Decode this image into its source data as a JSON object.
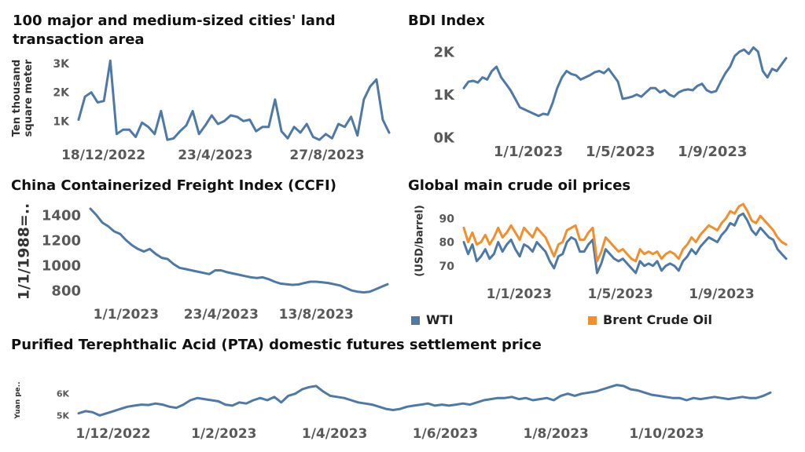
{
  "chart_data": [
    {
      "id": "land",
      "type": "line",
      "title": "100 major and medium-sized cities' land transaction area",
      "ylabel": "Ten thousand square meter",
      "xlabel": "",
      "x_tick_labels": [
        "18/12/2022",
        "23/4/2023",
        "27/8/2023"
      ],
      "y_tick_labels": [
        "1K",
        "2K",
        "3K"
      ],
      "y_ticks": [
        1000,
        2000,
        3000
      ],
      "ylim": [
        300,
        3300
      ],
      "xlim": [
        0,
        50
      ],
      "x_tick_positions": [
        4,
        22,
        40
      ],
      "grid": false,
      "series": [
        {
          "color": "#4e79a7",
          "values": [
            1050,
            1850,
            2000,
            1650,
            1700,
            3100,
            550,
            700,
            700,
            450,
            950,
            800,
            550,
            1350,
            350,
            400,
            650,
            850,
            1350,
            550,
            850,
            1200,
            900,
            1000,
            1200,
            1150,
            1000,
            1050,
            650,
            800,
            800,
            1750,
            650,
            400,
            800,
            600,
            900,
            450,
            350,
            550,
            400,
            900,
            800,
            1150,
            500,
            1750,
            2200,
            2450,
            1050,
            600
          ]
        }
      ]
    },
    {
      "id": "bdi",
      "type": "line",
      "title": "BDI Index",
      "xlabel": "",
      "ylabel": "",
      "x_tick_labels": [
        "1/1/2023",
        "1/5/2023",
        "1/9/2023"
      ],
      "y_tick_labels": [
        "0K",
        "1K",
        "2K"
      ],
      "y_ticks": [
        0,
        1000,
        2000
      ],
      "ylim": [
        0,
        2200
      ],
      "xlim": [
        0,
        70
      ],
      "x_tick_positions": [
        14,
        34,
        54
      ],
      "grid": false,
      "series": [
        {
          "color": "#4e79a7",
          "values": [
            1150,
            1300,
            1320,
            1280,
            1400,
            1350,
            1550,
            1650,
            1400,
            1250,
            1100,
            900,
            700,
            650,
            600,
            550,
            500,
            550,
            530,
            800,
            1150,
            1400,
            1550,
            1480,
            1450,
            1350,
            1400,
            1450,
            1520,
            1550,
            1500,
            1600,
            1450,
            1300,
            900,
            920,
            950,
            1000,
            950,
            1050,
            1150,
            1150,
            1050,
            1100,
            1000,
            950,
            1050,
            1100,
            1120,
            1100,
            1200,
            1250,
            1100,
            1050,
            1080,
            1300,
            1500,
            1650,
            1900,
            2000,
            2050,
            1950,
            2100,
            2000,
            1550,
            1400,
            1600,
            1550,
            1700,
            1850
          ]
        }
      ]
    },
    {
      "id": "ccfi",
      "type": "line",
      "title": "China Containerized Freight Index (CCFI)",
      "ylabel": "1/1/1988=..",
      "xlabel": "",
      "x_tick_labels": [
        "1/1/2023",
        "23/4/2023",
        "13/8/2023"
      ],
      "y_tick_labels": [
        "800",
        "1000",
        "1200",
        "1400"
      ],
      "y_ticks": [
        800,
        1000,
        1200,
        1400
      ],
      "ylim": [
        720,
        1500
      ],
      "xlim": [
        0,
        50
      ],
      "x_tick_positions": [
        6,
        22,
        38
      ],
      "grid": false,
      "series": [
        {
          "color": "#4e79a7",
          "values": [
            1450,
            1400,
            1340,
            1310,
            1270,
            1250,
            1200,
            1160,
            1130,
            1110,
            1130,
            1090,
            1060,
            1050,
            1010,
            980,
            970,
            960,
            950,
            940,
            930,
            960,
            960,
            945,
            935,
            925,
            915,
            905,
            900,
            905,
            890,
            870,
            855,
            850,
            845,
            848,
            860,
            870,
            870,
            865,
            860,
            850,
            840,
            820,
            800,
            790,
            785,
            790,
            810,
            830,
            850
          ]
        }
      ]
    },
    {
      "id": "oil",
      "type": "line",
      "title": "Global main crude oil prices",
      "ylabel": "(USD/barrel)",
      "xlabel": "",
      "x_tick_labels": [
        "1/1/2023",
        "1/5/2023",
        "1/9/2023"
      ],
      "y_tick_labels": [
        "70",
        "80",
        "90"
      ],
      "y_ticks": [
        70,
        80,
        90
      ],
      "ylim": [
        64,
        97
      ],
      "xlim": [
        0,
        70
      ],
      "x_tick_positions": [
        12,
        34,
        56
      ],
      "grid": false,
      "legend": "bottom",
      "series": [
        {
          "name": "WTI",
          "color": "#4e79a7",
          "values": [
            80,
            75,
            79,
            72,
            74,
            77,
            73,
            75,
            80,
            76,
            79,
            81,
            77,
            74,
            79,
            78,
            76,
            80,
            78,
            76,
            72,
            69,
            74,
            75,
            80,
            82,
            81,
            76,
            76,
            79,
            81,
            67,
            71,
            77,
            75,
            73,
            72,
            73,
            71,
            69,
            67,
            72,
            70,
            71,
            70,
            72,
            68,
            70,
            71,
            70,
            68,
            72,
            74,
            77,
            75,
            78,
            80,
            82,
            81,
            80,
            83,
            85,
            88,
            87,
            91,
            92,
            89,
            85,
            83,
            86,
            84,
            82,
            81,
            77,
            75,
            73
          ]
        },
        {
          "name": "Brent Crude Oil",
          "color": "#f28e2b",
          "values": [
            86,
            80,
            84,
            79,
            80,
            83,
            79,
            82,
            86,
            82,
            84,
            87,
            84,
            81,
            86,
            84,
            82,
            86,
            84,
            82,
            78,
            74,
            79,
            80,
            85,
            86,
            87,
            81,
            81,
            84,
            86,
            72,
            76,
            82,
            80,
            78,
            76,
            77,
            75,
            73,
            72,
            77,
            75,
            76,
            75,
            76,
            73,
            75,
            76,
            75,
            73,
            77,
            79,
            82,
            80,
            83,
            85,
            87,
            86,
            85,
            88,
            90,
            93,
            92,
            95,
            96,
            93,
            89,
            88,
            91,
            89,
            87,
            85,
            82,
            80,
            79
          ]
        }
      ]
    },
    {
      "id": "pta",
      "type": "line",
      "title": "Purified Terephthalic Acid (PTA) domestic futures settlement price",
      "ylabel": "Yuan pe..",
      "xlabel": "",
      "x_tick_labels": [
        "1/12/2022",
        "1/2/2023",
        "1/4/2023",
        "1/6/2023",
        "1/8/2023",
        "1/10/2023"
      ],
      "y_tick_labels": [
        "5K",
        "6K"
      ],
      "y_ticks": [
        5000,
        6000
      ],
      "ylim": [
        4800,
        6600
      ],
      "xlim": [
        0,
        100
      ],
      "x_tick_positions": [
        5,
        21,
        37,
        53,
        69,
        85
      ],
      "grid": false,
      "series": [
        {
          "color": "#4e79a7",
          "values": [
            5100,
            5200,
            5150,
            5000,
            5100,
            5200,
            5300,
            5400,
            5450,
            5500,
            5480,
            5550,
            5500,
            5400,
            5350,
            5500,
            5700,
            5800,
            5750,
            5700,
            5650,
            5500,
            5450,
            5600,
            5550,
            5700,
            5800,
            5700,
            5850,
            5600,
            5900,
            6000,
            6200,
            6300,
            6350,
            6100,
            5900,
            5850,
            5800,
            5700,
            5600,
            5550,
            5500,
            5400,
            5300,
            5250,
            5300,
            5400,
            5450,
            5500,
            5550,
            5450,
            5500,
            5450,
            5500,
            5550,
            5500,
            5600,
            5700,
            5750,
            5800,
            5800,
            5850,
            5750,
            5800,
            5700,
            5750,
            5800,
            5700,
            5900,
            6000,
            5900,
            6000,
            6050,
            6100,
            6200,
            6300,
            6400,
            6350,
            6200,
            6150,
            6050,
            5950,
            5900,
            5850,
            5800,
            5800,
            5700,
            5800,
            5750,
            5800,
            5850,
            5800,
            5750,
            5800,
            5850,
            5800,
            5800,
            5900,
            6050
          ]
        }
      ]
    }
  ]
}
